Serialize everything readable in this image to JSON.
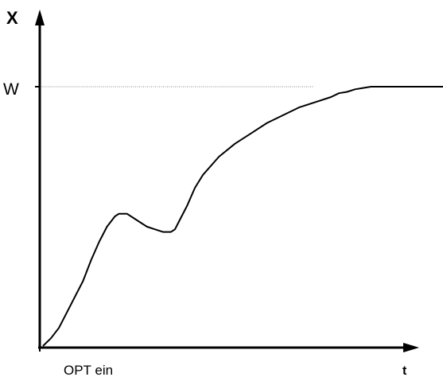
{
  "chart_data": {
    "type": "line",
    "ylabel": "X",
    "xlabel": "t",
    "setpoint_label": "W",
    "event_label": "OPT ein",
    "xlim": [
      0,
      1
    ],
    "ylim": [
      0,
      1
    ],
    "grid": false,
    "colors": {
      "curve": "#000000",
      "axes": "#000000",
      "setpoint_line": "#888888"
    },
    "series": [
      {
        "x": [
          0.0,
          0.02,
          0.04,
          0.06,
          0.08,
          0.1,
          0.12,
          0.14,
          0.16,
          0.18,
          0.19,
          0.2,
          0.21,
          0.22,
          0.24,
          0.26,
          0.28,
          0.3,
          0.31,
          0.32,
          0.33,
          0.34,
          0.36,
          0.38,
          0.4,
          0.44,
          0.48,
          0.52,
          0.56,
          0.6,
          0.64,
          0.68,
          0.72,
          0.74,
          0.76,
          0.78,
          0.8,
          0.82,
          0.84,
          0.86,
          0.88,
          0.9,
          0.92,
          0.96,
          1.0
        ],
        "y": [
          0.0,
          0.03,
          0.07,
          0.13,
          0.19,
          0.25,
          0.33,
          0.4,
          0.46,
          0.5,
          0.51,
          0.51,
          0.51,
          0.5,
          0.48,
          0.46,
          0.45,
          0.44,
          0.44,
          0.44,
          0.45,
          0.48,
          0.54,
          0.61,
          0.66,
          0.73,
          0.78,
          0.82,
          0.86,
          0.89,
          0.92,
          0.94,
          0.96,
          0.975,
          0.98,
          0.99,
          0.995,
          1.0,
          1.0,
          1.0,
          1.0,
          1.0,
          1.0,
          1.0,
          1.0
        ]
      }
    ],
    "setpoint_value": 1.0,
    "event_x": 0.0
  }
}
